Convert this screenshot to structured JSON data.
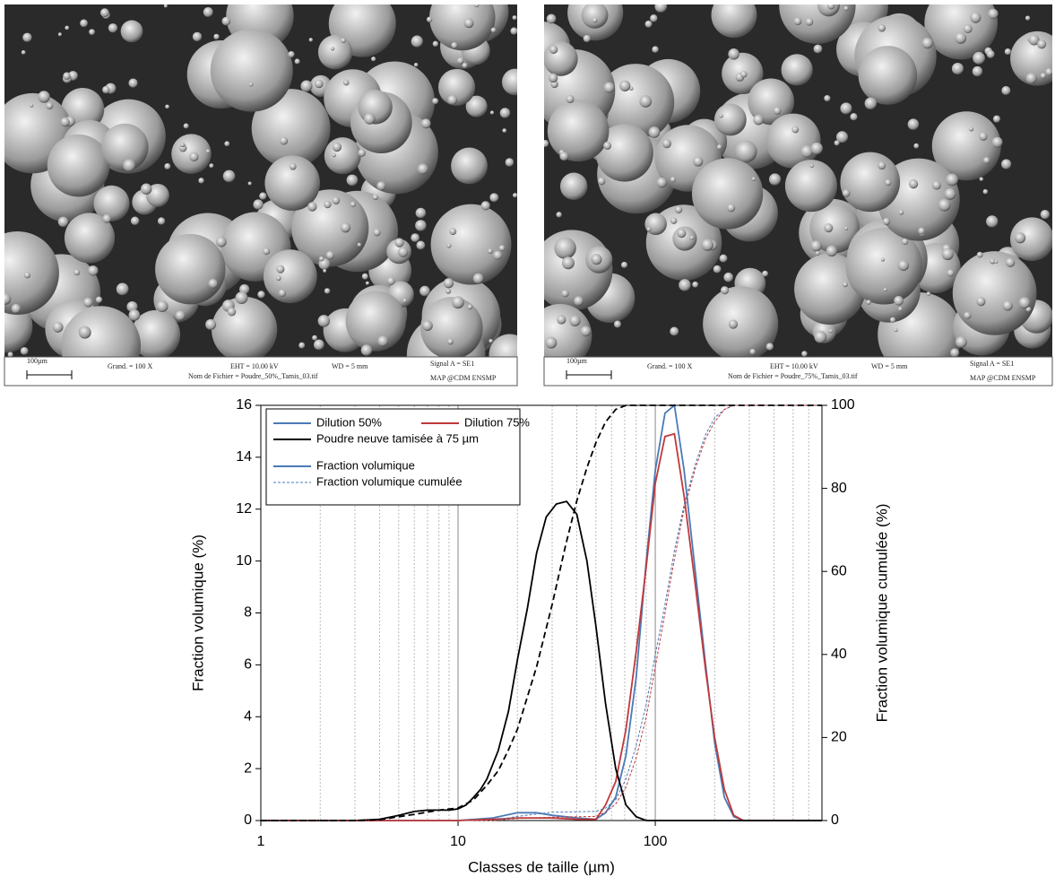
{
  "images": [
    {
      "scale": "100µm",
      "magnification": "Grand. =   100 X",
      "voltage": "EHT = 10.00 kV",
      "distance": "WD =   5 mm",
      "signal": "Signal A = SE1",
      "file": "Nom de Fichier = Poudre_50%_Tamis_03.tif",
      "lab": "MAP @CDM ENSMP"
    },
    {
      "scale": "100µm",
      "magnification": "Grand. =   100 X",
      "voltage": "EHT = 10.00 kV",
      "distance": "WD =   5 mm",
      "signal": "Signal A = SE1",
      "file": "Nom de Fichier = Poudre_75%_Tamis_03.tif",
      "lab": "MAP @CDM ENSMP"
    }
  ],
  "chart_data": {
    "type": "line",
    "xlabel": "Classes de taille (µm)",
    "ylabel": "Fraction volumique (%)",
    "y2label": "Fraction volumique cumulée (%)",
    "xscale": "log",
    "xlim": [
      1,
      700
    ],
    "xticks": [
      1,
      10,
      100
    ],
    "xgrid_minor": [
      2,
      3,
      4,
      5,
      6,
      7,
      8,
      9,
      20,
      30,
      40,
      50,
      60,
      70,
      80,
      90,
      200,
      300,
      400,
      500,
      600,
      700
    ],
    "ylim": [
      0,
      16
    ],
    "yticks": [
      0,
      2,
      4,
      6,
      8,
      10,
      12,
      14,
      16
    ],
    "y2lim": [
      0,
      100
    ],
    "y2ticks": [
      0,
      20,
      40,
      60,
      80,
      100
    ],
    "legend": {
      "position": "upper left",
      "style_entries": [
        "Fraction volumique",
        "Fraction volumique cumulée"
      ]
    },
    "series": [
      {
        "name": "Dilution 50%",
        "color": "#4a7ab5",
        "x": [
          1,
          10,
          15,
          20,
          25,
          30,
          40,
          50,
          56,
          63,
          71,
          80,
          90,
          100,
          112,
          125,
          140,
          160,
          180,
          200,
          224,
          250,
          280,
          700
        ],
        "values": [
          0,
          0,
          0.1,
          0.3,
          0.3,
          0.2,
          0.1,
          0.05,
          0.3,
          0.9,
          2.5,
          5.5,
          10,
          13.5,
          15.7,
          16,
          13.5,
          9.5,
          6,
          3,
          0.9,
          0.15,
          0,
          0
        ]
      },
      {
        "name": "Dilution 75%",
        "color": "#c0393b",
        "x": [
          1,
          10,
          15,
          20,
          25,
          30,
          40,
          50,
          56,
          63,
          71,
          80,
          90,
          100,
          112,
          125,
          140,
          160,
          180,
          200,
          224,
          250,
          280,
          700
        ],
        "values": [
          0,
          0,
          0.05,
          0.1,
          0.1,
          0.1,
          0.05,
          0.05,
          0.6,
          1.5,
          3.5,
          6.5,
          9.8,
          13,
          14.8,
          14.9,
          12.5,
          9,
          5.8,
          3.2,
          1.2,
          0.2,
          0,
          0
        ]
      },
      {
        "name": "Poudre neuve tamisée à 75 µm",
        "color": "#000000",
        "x": [
          1,
          3,
          4,
          5,
          6,
          7,
          8,
          9,
          10,
          11,
          12,
          13,
          14,
          16,
          18,
          20,
          22.5,
          25,
          28,
          31.5,
          35.5,
          40,
          45,
          50,
          56,
          63,
          71,
          80,
          90,
          700
        ],
        "values": [
          0,
          0,
          0.05,
          0.2,
          0.35,
          0.4,
          0.4,
          0.4,
          0.45,
          0.6,
          0.9,
          1.2,
          1.6,
          2.7,
          4.2,
          6.2,
          8.2,
          10.3,
          11.7,
          12.2,
          12.3,
          11.8,
          10,
          7.5,
          4.5,
          2,
          0.6,
          0.15,
          0,
          0
        ]
      },
      {
        "color": "#4a7ab5",
        "axis": "y2",
        "dash": true,
        "x": [
          1,
          15,
          20,
          30,
          50,
          56,
          63,
          71,
          80,
          90,
          100,
          112,
          125,
          140,
          160,
          180,
          200,
          224,
          250,
          700
        ],
        "values": [
          0,
          0,
          1,
          2,
          2.2,
          3,
          5,
          10,
          18,
          28,
          40,
          52,
          65,
          76,
          86,
          93,
          97,
          99,
          100,
          100
        ]
      },
      {
        "color": "#c0393b",
        "axis": "y2",
        "dash": true,
        "x": [
          1,
          15,
          20,
          30,
          50,
          56,
          63,
          71,
          80,
          90,
          100,
          112,
          125,
          140,
          160,
          180,
          200,
          224,
          250,
          700
        ],
        "values": [
          0,
          0,
          0.5,
          0.8,
          1,
          2,
          4,
          8,
          15,
          25,
          37,
          50,
          63,
          75,
          85,
          92,
          96,
          99,
          100,
          100
        ]
      },
      {
        "color": "#000000",
        "axis": "y2",
        "dash": true,
        "x": [
          1,
          3,
          4,
          6,
          8,
          10,
          12,
          14,
          16,
          18,
          20,
          25,
          30,
          35,
          40,
          45,
          50,
          56,
          63,
          71,
          100,
          700
        ],
        "values": [
          0,
          0,
          0.2,
          1.5,
          2.5,
          3,
          5,
          8.5,
          12,
          17,
          22,
          37,
          52,
          66,
          77,
          85,
          91,
          96,
          99,
          100,
          100,
          100
        ]
      }
    ]
  }
}
